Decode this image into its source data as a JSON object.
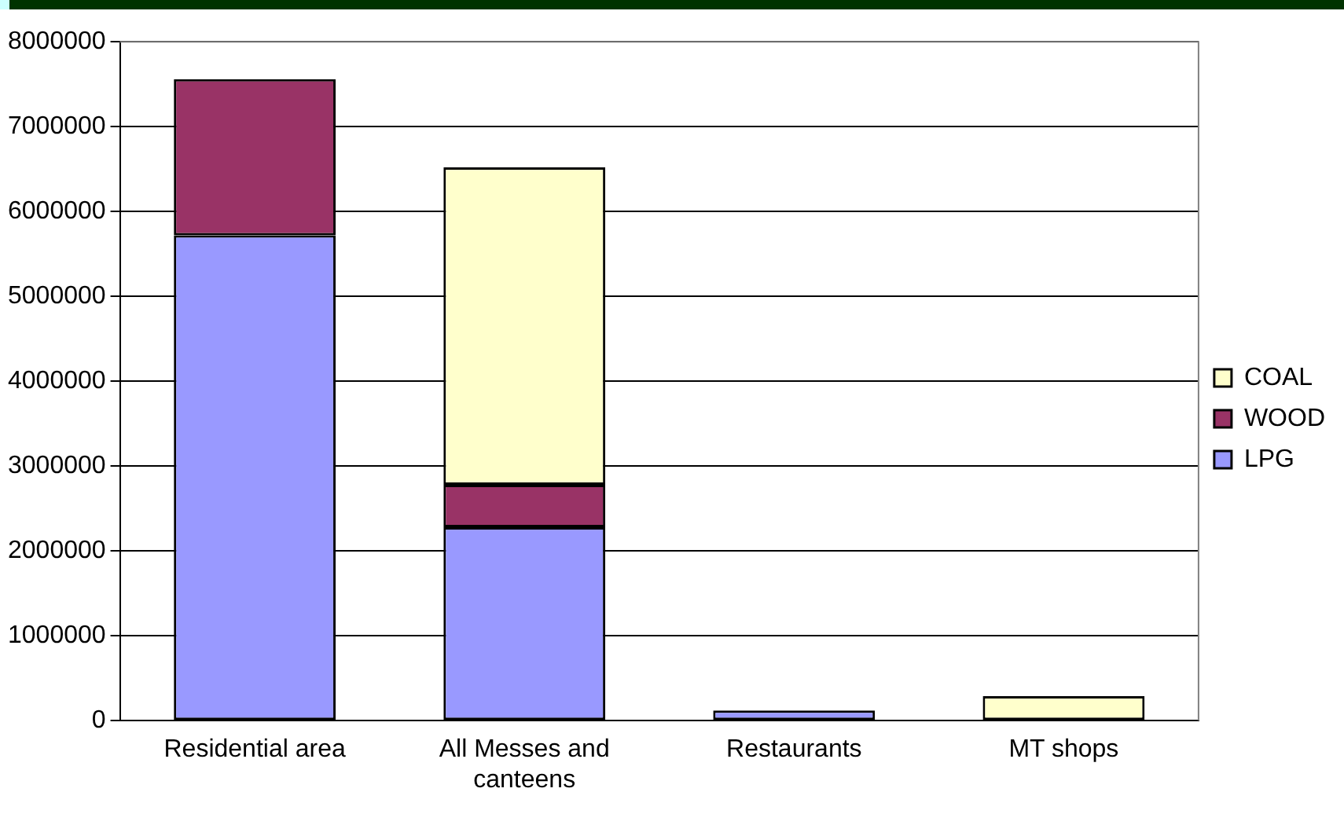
{
  "chart_data": {
    "type": "bar",
    "stacked": true,
    "categories": [
      "Residential area",
      "All Messes and canteens",
      "Restaurants",
      "MT shops"
    ],
    "series": [
      {
        "name": "LPG",
        "color": "#9999ff",
        "values": [
          5720000,
          2280000,
          120000,
          null
        ]
      },
      {
        "name": "WOOD",
        "color": "#993366",
        "values": [
          1840000,
          500000,
          null,
          null
        ]
      },
      {
        "name": "COAL",
        "color": "#ffffcc",
        "values": [
          null,
          3740000,
          null,
          290000
        ]
      }
    ],
    "ylim": [
      0,
      8000000
    ],
    "yticks": [
      0,
      1000000,
      2000000,
      3000000,
      4000000,
      5000000,
      6000000,
      7000000,
      8000000
    ],
    "grid": "y",
    "legend": "right"
  }
}
